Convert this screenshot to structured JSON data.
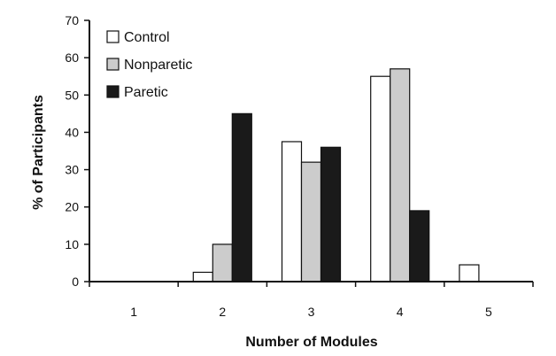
{
  "chart_data": {
    "type": "bar",
    "title": "",
    "xlabel": "Number of Modules",
    "ylabel": "% of Participants",
    "categories": [
      "1",
      "2",
      "3",
      "4",
      "5"
    ],
    "series": [
      {
        "name": "Control",
        "color": "#ffffff",
        "values": [
          0,
          2.5,
          37.5,
          55,
          4.5
        ]
      },
      {
        "name": "Nonparetic",
        "color": "#cccccc",
        "values": [
          0,
          10,
          32,
          57,
          0
        ]
      },
      {
        "name": "Paretic",
        "color": "#1a1a1a",
        "values": [
          0,
          45,
          36,
          19,
          0
        ]
      }
    ],
    "ylim": [
      0,
      70
    ],
    "yticks": [
      0,
      10,
      20,
      30,
      40,
      50,
      60,
      70
    ],
    "grid": false,
    "legend_position": "top-left"
  }
}
